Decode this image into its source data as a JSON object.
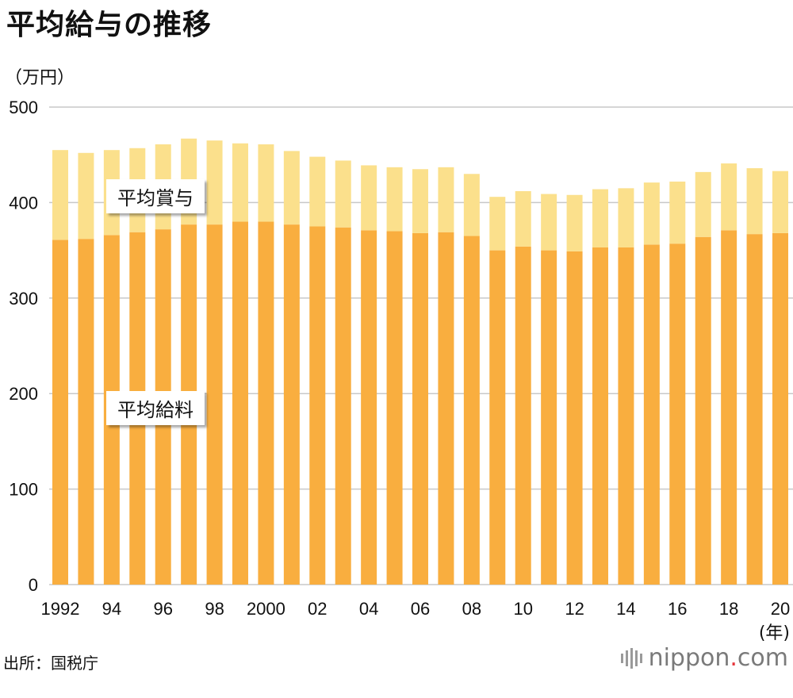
{
  "title": "平均給与の推移",
  "unit_label": "（万円）",
  "x_unit_label": "(年)",
  "source": "出所：国税庁",
  "brand": {
    "prefix": "nippon",
    "dot": ".",
    "suffix": "com"
  },
  "colors": {
    "salary": "#f9ae3f",
    "bonus": "#fbe08c",
    "grid": "#c8c8c8"
  },
  "chart_data": {
    "type": "bar",
    "stacked": true,
    "categories": [
      "1992",
      "1993",
      "1994",
      "1995",
      "1996",
      "1997",
      "1998",
      "1999",
      "2000",
      "2001",
      "2002",
      "2003",
      "2004",
      "2005",
      "2006",
      "2007",
      "2008",
      "2009",
      "2010",
      "2011",
      "2012",
      "2013",
      "2014",
      "2015",
      "2016",
      "2017",
      "2018",
      "2019",
      "2020"
    ],
    "tick_labels": [
      "1992",
      "",
      "94",
      "",
      "96",
      "",
      "98",
      "",
      "2000",
      "",
      "02",
      "",
      "04",
      "",
      "06",
      "",
      "08",
      "",
      "10",
      "",
      "12",
      "",
      "14",
      "",
      "16",
      "",
      "18",
      "",
      "20"
    ],
    "series": [
      {
        "name": "平均給料",
        "values": [
          361,
          362,
          366,
          369,
          372,
          377,
          377,
          380,
          380,
          377,
          375,
          374,
          371,
          370,
          368,
          369,
          365,
          350,
          354,
          350,
          349,
          353,
          353,
          356,
          357,
          364,
          371,
          367,
          368
        ]
      },
      {
        "name": "平均賞与",
        "values": [
          94,
          90,
          89,
          88,
          89,
          90,
          88,
          82,
          81,
          77,
          73,
          70,
          68,
          67,
          67,
          68,
          65,
          56,
          58,
          59,
          59,
          61,
          62,
          65,
          65,
          68,
          70,
          69,
          65
        ]
      }
    ],
    "ylim": [
      0,
      500
    ],
    "yticks": [
      0,
      100,
      200,
      300,
      400,
      500
    ],
    "grid": true
  }
}
